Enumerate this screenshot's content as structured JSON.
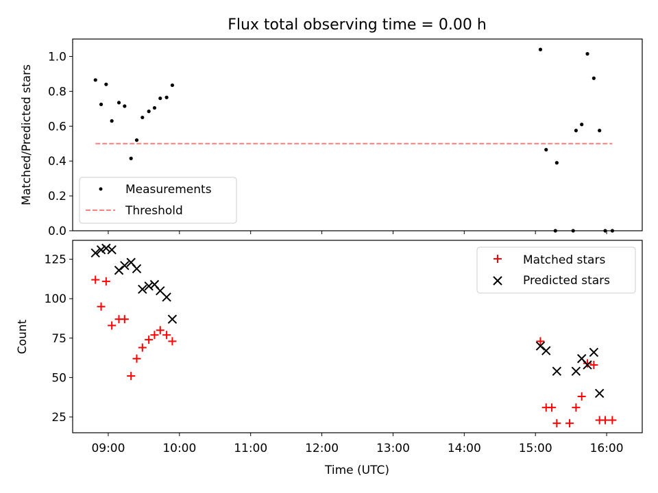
{
  "chart_data": [
    {
      "type": "scatter",
      "title": "Flux total observing time = 0.00 h",
      "xlabel": "",
      "ylabel": "Matched/Predicted stars",
      "ylim": [
        0,
        1.1
      ],
      "yticks": [
        0.0,
        0.2,
        0.4,
        0.6,
        0.8,
        1.0
      ],
      "ytick_labels": [
        "0.0",
        "0.2",
        "0.4",
        "0.6",
        "0.8",
        "1.0"
      ],
      "legend_position": "lower-left",
      "series": [
        {
          "name": "Measurements",
          "marker": "dot",
          "color": "#000000",
          "x": [
            8.82,
            8.9,
            8.97,
            9.05,
            9.15,
            9.23,
            9.32,
            9.4,
            9.48,
            9.57,
            9.65,
            9.73,
            9.82,
            9.9,
            15.07,
            15.15,
            15.3,
            15.28,
            15.57,
            15.53,
            15.65,
            15.73,
            15.82,
            15.9,
            15.98,
            16.08
          ],
          "y": [
            0.865,
            0.725,
            0.84,
            0.63,
            0.735,
            0.715,
            0.415,
            0.52,
            0.65,
            0.685,
            0.705,
            0.76,
            0.765,
            0.835,
            1.04,
            0.465,
            0.39,
            0.0,
            0.575,
            0.0,
            0.61,
            1.015,
            0.875,
            0.575,
            0.0,
            0.0
          ]
        },
        {
          "name": "Threshold",
          "style": "dashed",
          "color": "#ff7f7f",
          "x": [
            8.82,
            16.08
          ],
          "y": [
            0.5,
            0.5
          ]
        }
      ]
    },
    {
      "type": "scatter",
      "title": "",
      "xlabel": "Time (UTC)",
      "ylabel": "Count",
      "xlim": [
        8.5,
        16.5
      ],
      "xticks": [
        9,
        10,
        11,
        12,
        13,
        14,
        15,
        16
      ],
      "xtick_labels": [
        "09:00",
        "10:00",
        "11:00",
        "12:00",
        "13:00",
        "14:00",
        "15:00",
        "16:00"
      ],
      "ylim": [
        15,
        137
      ],
      "yticks": [
        25,
        50,
        75,
        100,
        125
      ],
      "ytick_labels": [
        "25",
        "50",
        "75",
        "100",
        "125"
      ],
      "legend_position": "top-right",
      "series": [
        {
          "name": "Matched stars",
          "marker": "plus",
          "color": "#ff0000",
          "x": [
            8.82,
            8.9,
            8.97,
            9.05,
            9.15,
            9.23,
            9.32,
            9.4,
            9.48,
            9.57,
            9.65,
            9.73,
            9.82,
            9.9,
            15.07,
            15.15,
            15.23,
            15.3,
            15.48,
            15.57,
            15.65,
            15.73,
            15.82,
            15.9,
            15.98,
            16.08
          ],
          "y": [
            112,
            95,
            111,
            83,
            87,
            87,
            51,
            62,
            69,
            74,
            77,
            80,
            77,
            73,
            73,
            31,
            31,
            21,
            21,
            31,
            38,
            59,
            58,
            23,
            23,
            23
          ]
        },
        {
          "name": "Predicted stars",
          "marker": "x",
          "color": "#000000",
          "x": [
            8.82,
            8.9,
            8.97,
            9.05,
            9.15,
            9.23,
            9.32,
            9.4,
            9.48,
            9.57,
            9.65,
            9.73,
            9.82,
            9.9,
            15.07,
            15.15,
            15.3,
            15.57,
            15.65,
            15.73,
            15.82,
            15.9
          ],
          "y": [
            129,
            131,
            132,
            131,
            118,
            121,
            123,
            119,
            106,
            108,
            109,
            105,
            101,
            87,
            70,
            67,
            54,
            54,
            62,
            58,
            66,
            40
          ]
        }
      ]
    }
  ]
}
